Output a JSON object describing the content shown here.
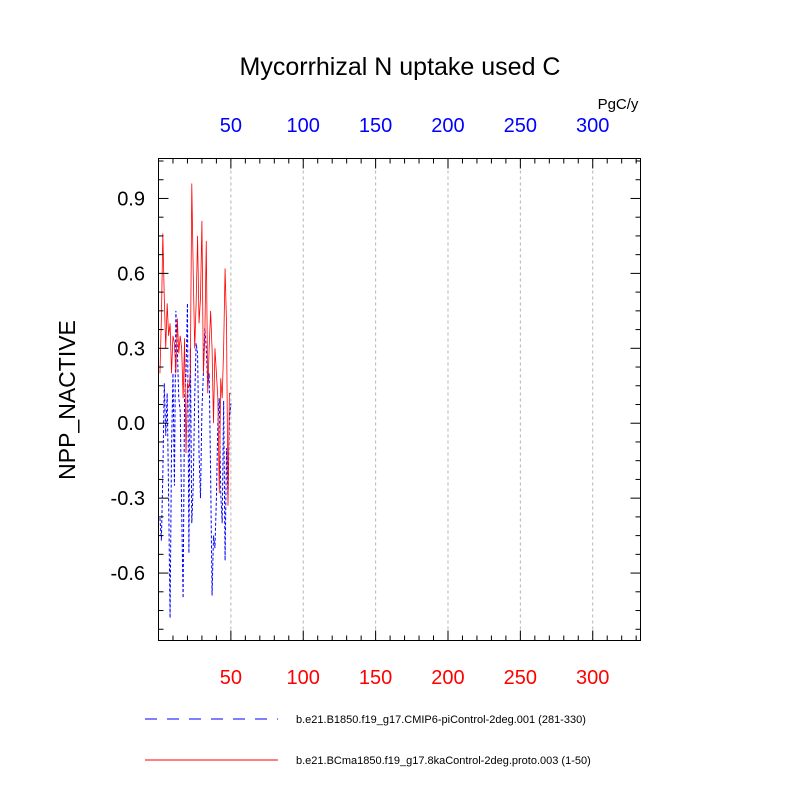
{
  "chart_data": {
    "type": "line",
    "title": "Mycorrhizal N uptake used C",
    "units": "PgC/y",
    "ylabel": "NPP_NACTIVE",
    "xlim": [
      0,
      333
    ],
    "ylim": [
      -0.87,
      1.06
    ],
    "x_ticks": [
      50,
      100,
      150,
      200,
      250,
      300
    ],
    "y_ticks": [
      -0.6,
      -0.3,
      0.0,
      0.3,
      0.6,
      0.9
    ],
    "y_tick_labels": [
      "-0.6",
      "-0.3",
      "0.0",
      "0.3",
      "0.6",
      "0.9"
    ],
    "top_axis_color": "#0000ff",
    "bottom_axis_color": "#ff0000",
    "grid": "vertical dotted lines at x ticks",
    "series": [
      {
        "name": "b.e21.B1850.f19_g17.CMIP6-piControl-2deg.001 (281-330)",
        "color": "#0000ff",
        "dash": "dashed",
        "x": [
          1,
          2,
          3,
          4,
          5,
          6,
          7,
          8,
          9,
          10,
          11,
          12,
          13,
          14,
          15,
          16,
          17,
          18,
          19,
          20,
          21,
          22,
          23,
          24,
          25,
          26,
          27,
          28,
          29,
          30,
          31,
          32,
          33,
          34,
          35,
          36,
          37,
          38,
          39,
          40,
          41,
          42,
          43,
          44,
          45,
          46,
          47,
          48,
          49,
          50
        ],
        "values": [
          -0.38,
          -0.47,
          -0.2,
          0.16,
          -0.05,
          0.12,
          -0.3,
          -0.78,
          -0.1,
          0.2,
          -0.25,
          0.45,
          0.3,
          0.1,
          0.05,
          -0.35,
          -0.7,
          0.1,
          0.2,
          0.48,
          -0.52,
          0.3,
          -0.4,
          -0.25,
          0.1,
          0.32,
          0.28,
          -0.12,
          -0.3,
          0.05,
          0.2,
          0.38,
          0.3,
          0.15,
          0.2,
          -0.2,
          -0.69,
          -0.45,
          -0.5,
          -0.3,
          0.0,
          0.1,
          -0.28,
          -0.4,
          0.09,
          -0.55,
          -0.1,
          -0.3,
          0.02,
          0.08
        ]
      },
      {
        "name": "b.e21.BCma1850.f19_g17.8kaControl-2deg.proto.003 (1-50)",
        "color": "#ff0000",
        "dash": "solid",
        "x": [
          1,
          2,
          3,
          4,
          5,
          6,
          7,
          8,
          9,
          10,
          11,
          12,
          13,
          14,
          15,
          16,
          17,
          18,
          19,
          20,
          21,
          22,
          23,
          24,
          25,
          26,
          27,
          28,
          29,
          30,
          31,
          32,
          33,
          34,
          35,
          36,
          37,
          38,
          39,
          40,
          41,
          42,
          43,
          44,
          45,
          46,
          47,
          48,
          49,
          50
        ],
        "values": [
          0.2,
          0.42,
          0.76,
          0.5,
          0.3,
          0.48,
          0.35,
          0.4,
          0.2,
          0.35,
          0.32,
          0.2,
          0.42,
          0.28,
          0.35,
          0.3,
          0.1,
          0.34,
          -0.12,
          0.16,
          0.14,
          0.2,
          0.96,
          0.6,
          0.3,
          0.48,
          0.75,
          0.4,
          0.5,
          0.81,
          0.2,
          0.35,
          0.73,
          0.12,
          0.3,
          0.45,
          0.3,
          0.0,
          0.3,
          0.2,
          0.1,
          -0.28,
          0.18,
          0.1,
          0.3,
          0.62,
          0.4,
          -0.33,
          0.12,
          0.12
        ]
      }
    ]
  }
}
